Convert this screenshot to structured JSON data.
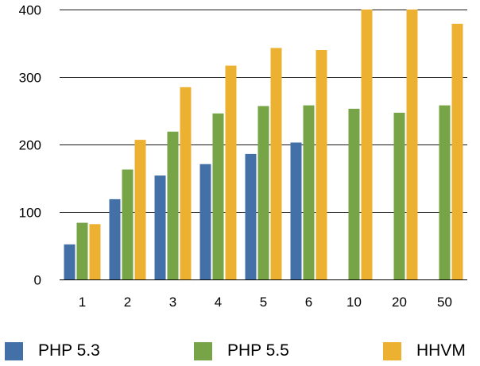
{
  "chart_data": {
    "type": "bar",
    "categories": [
      "1",
      "2",
      "3",
      "4",
      "5",
      "6",
      "10",
      "20",
      "50"
    ],
    "series": [
      {
        "name": "PHP 5.3",
        "color": "#4470a8",
        "values": [
          52,
          119,
          154,
          171,
          186,
          203,
          null,
          null,
          null
        ]
      },
      {
        "name": "PHP 5.5",
        "color": "#77a446",
        "values": [
          84,
          163,
          219,
          246,
          257,
          258,
          253,
          247,
          258
        ]
      },
      {
        "name": "HHVM",
        "color": "#ecb130",
        "values": [
          82,
          207,
          285,
          317,
          343,
          340,
          400,
          400,
          379
        ]
      }
    ],
    "ylim": [
      0,
      400
    ],
    "yticks": [
      "0",
      "100",
      "200",
      "300",
      "400"
    ],
    "grid": true,
    "legend": "bottom"
  }
}
